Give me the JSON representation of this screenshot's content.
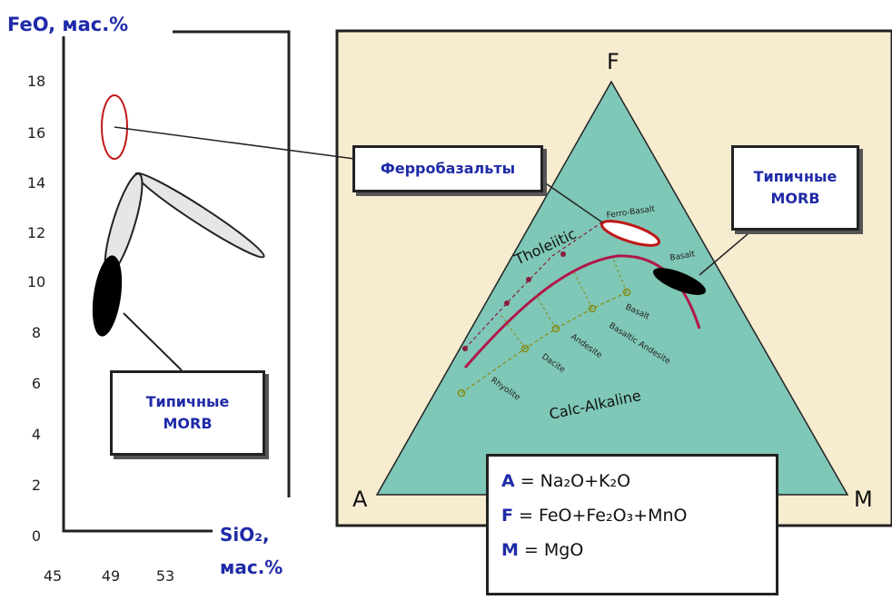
{
  "left_chart": {
    "y_axis_label": "FeO, мас.%",
    "y_ticks": [
      "18",
      "16",
      "14",
      "12",
      "10",
      "8",
      "6",
      "4",
      "2",
      "0"
    ],
    "x_ticks": [
      "45",
      "49",
      "53"
    ],
    "x_axis_label_line1": "SiO₂,",
    "x_axis_label_line2": "мас.%"
  },
  "typical_morb_left": {
    "line1": "Типичные",
    "line2": "MORB"
  },
  "ferrobasalt_box": "Ферробазальты",
  "typical_morb_right": {
    "line1": "Типичные",
    "line2": "MORB"
  },
  "ternary": {
    "vertex_f": "F",
    "vertex_a": "A",
    "vertex_m": "M",
    "label_tholeiitic": "Tholeiitic",
    "label_calc_alkaline": "Calc-Alkaline",
    "label_ferro_basalt": "Ferro-Basalt",
    "label_basalt_tholeiitic": "Basalt",
    "label_basalt_calc": "Basalt",
    "label_basaltic_andesite": "Basaltic Andesite",
    "label_andesite": "Andesite",
    "label_dacite": "Dacite",
    "label_rhyolite": "Rhyolite"
  },
  "formulas": {
    "a_key": "A",
    "a_value": "= Na₂O+K₂O",
    "f_key": "F",
    "f_value": "= FeO+Fe₂O₃+MnO",
    "m_key": "M",
    "m_value": "= MgO"
  },
  "colors": {
    "axis_label_blue": "#1f2aa8",
    "triangle_fill": "#7fc7b7",
    "panel_bg": "#f8ecd0",
    "ferro_red": "#c01818",
    "divider_magenta": "#b0184a",
    "calc_trend_olive": "#8a8a10"
  }
}
